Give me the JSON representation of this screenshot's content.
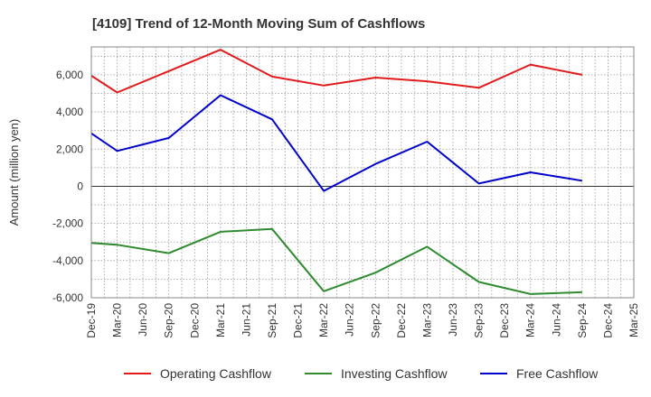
{
  "chart_data": {
    "type": "line",
    "title": "[4109]  Trend of 12-Month Moving Sum of Cashflows",
    "xlabel": "",
    "ylabel": "Amount (million yen)",
    "x": [
      "Dec-19",
      "Mar-20",
      "Jun-20",
      "Sep-20",
      "Dec-20",
      "Mar-21",
      "Jun-21",
      "Sep-21",
      "Dec-21",
      "Mar-22",
      "Jun-22",
      "Sep-22",
      "Dec-22",
      "Mar-23",
      "Jun-23",
      "Sep-23",
      "Dec-23",
      "Mar-24",
      "Jun-24",
      "Sep-24",
      "Dec-24",
      "Mar-25"
    ],
    "ylim": [
      -6000,
      7500
    ],
    "yticks": [
      -6000,
      -4000,
      -2000,
      0,
      2000,
      4000,
      6000
    ],
    "ytick_labels": [
      "-6,000",
      "-4,000",
      "-2,000",
      "0",
      "2,000",
      "4,000",
      "6,000"
    ],
    "grid": true,
    "legend_position": "bottom",
    "series": [
      {
        "name": "Operating Cashflow",
        "color": "#e31a1c",
        "values": [
          5950,
          5050,
          null,
          6200,
          null,
          7350,
          null,
          5900,
          null,
          5420,
          null,
          5850,
          null,
          5650,
          null,
          5300,
          null,
          6550,
          null,
          6000,
          null,
          null
        ]
      },
      {
        "name": "Investing Cashflow",
        "color": "#2e8b2e",
        "values": [
          -3050,
          -3150,
          null,
          -3600,
          null,
          -2450,
          null,
          -2300,
          null,
          -5650,
          null,
          -4650,
          null,
          -3250,
          null,
          -5150,
          null,
          -5800,
          null,
          -5700,
          null,
          null
        ]
      },
      {
        "name": "Free Cashflow",
        "color": "#0000cc",
        "values": [
          2850,
          1900,
          null,
          2600,
          null,
          4900,
          null,
          3600,
          null,
          -250,
          null,
          1200,
          null,
          2400,
          null,
          150,
          null,
          750,
          null,
          300,
          null,
          null
        ]
      }
    ]
  }
}
